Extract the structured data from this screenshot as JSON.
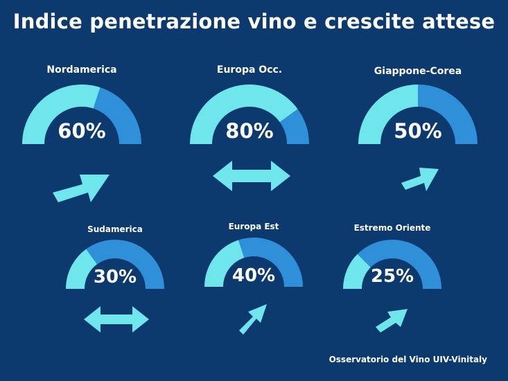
{
  "title": "Indice penetrazione vino e crescite attese",
  "source": "Osservatorio del Vino UIV-Vinitaly",
  "colors": {
    "background": "#0c3a6e",
    "light": "#6ee6ec",
    "dark": "#2f8fd8",
    "text": "#ffffff"
  },
  "chart_data": {
    "type": "gauge",
    "unit": "%",
    "items": [
      {
        "region": "Nordamerica",
        "value": 60,
        "label": "60%",
        "growth": "up",
        "arrow_icon": "arrow-up-right-icon"
      },
      {
        "region": "Europa Occ.",
        "value": 80,
        "label": "80%",
        "growth": "stable",
        "arrow_icon": "double-arrow-horizontal-icon"
      },
      {
        "region": "Giappone-Corea",
        "value": 50,
        "label": "50%",
        "growth": "up",
        "arrow_icon": "arrow-up-right-icon"
      },
      {
        "region": "Sudamerica",
        "value": 30,
        "label": "30%",
        "growth": "stable",
        "arrow_icon": "double-arrow-horizontal-icon"
      },
      {
        "region": "Europa Est",
        "value": 40,
        "label": "40%",
        "growth": "up",
        "arrow_icon": "arrow-up-right-icon"
      },
      {
        "region": "Estremo Oriente",
        "value": 25,
        "label": "25%",
        "growth": "up",
        "arrow_icon": "arrow-up-right-icon"
      }
    ]
  }
}
